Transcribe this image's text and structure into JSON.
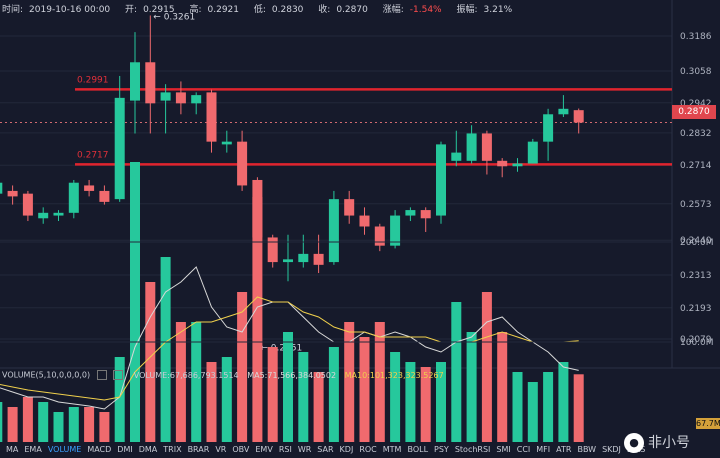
{
  "header": {
    "time_label": "时间:",
    "time": "2019-10-16 00:00",
    "open_label": "开:",
    "open": "0.2915",
    "high_label": "高:",
    "high": "0.2921",
    "low_label": "低:",
    "low": "0.2830",
    "close_label": "收:",
    "close": "0.2870",
    "change_label": "涨幅:",
    "change": "-1.54%",
    "amplitude_label": "振幅:",
    "amplitude": "3.21%"
  },
  "volume_panel": {
    "indicator": "VOLUME(5,10,0,0,0,0)",
    "volume_text": "VOLUME:67,686,793.1514",
    "ma5_text": "MA5:71,566,384.0502",
    "ma10_text": "MA10:101,323,323.5267",
    "last_volume_badge": "67.7M"
  },
  "indicator_tabs": [
    "MA",
    "EMA",
    "VOLUME",
    "MACD",
    "DMI",
    "DMA",
    "TRIX",
    "BRAR",
    "VR",
    "OBV",
    "EMV",
    "RSI",
    "WR",
    "SAR",
    "KDJ",
    "ROC",
    "MTM",
    "BOLL",
    "PSY",
    "StochRSI",
    "SMI",
    "CCI",
    "MFI",
    "ATR",
    "BBW",
    "SKDJ",
    "BIAS"
  ],
  "active_tab": "VOLUME",
  "current_price_badge": "0.2870",
  "watermark": "非小号",
  "colors": {
    "up": "#26c89c",
    "down": "#f06a6e",
    "background": "#161a2b",
    "level_line": "#e0242e",
    "ma5": "#d8d8d8",
    "ma10": "#f0d04c"
  },
  "chart_data": {
    "type": "candlestick",
    "y_ticks": [
      0.3186,
      0.3058,
      0.2942,
      0.2832,
      0.2714,
      0.2573,
      0.244,
      0.2313,
      0.2193,
      0.2079
    ],
    "y_tick_labels": [
      "0.3186",
      "0.3058",
      "0.2942",
      "0.2832",
      "0.2714",
      "0.2573",
      "0.2440",
      "0.2313",
      "0.2193",
      "0.2079"
    ],
    "vol_ticks": [
      200,
      100
    ],
    "vol_tick_labels": [
      "200.0M",
      "100.0M"
    ],
    "level_lines": [
      {
        "value": 0.2991,
        "label": "0.2991"
      },
      {
        "value": 0.2717,
        "label": "0.2717"
      }
    ],
    "current_price": 0.287,
    "annotations": [
      {
        "text": "0.3261",
        "index": 11,
        "value": 0.3261
      },
      {
        "text": "0.2051",
        "index": 18,
        "value": 0.2051
      }
    ],
    "candles": [
      {
        "o": 0.263,
        "h": 0.266,
        "l": 0.257,
        "c": 0.259
      },
      {
        "o": 0.261,
        "h": 0.266,
        "l": 0.258,
        "c": 0.265
      },
      {
        "o": 0.262,
        "h": 0.264,
        "l": 0.257,
        "c": 0.26
      },
      {
        "o": 0.261,
        "h": 0.262,
        "l": 0.251,
        "c": 0.253
      },
      {
        "o": 0.252,
        "h": 0.256,
        "l": 0.25,
        "c": 0.254
      },
      {
        "o": 0.253,
        "h": 0.255,
        "l": 0.251,
        "c": 0.254
      },
      {
        "o": 0.254,
        "h": 0.266,
        "l": 0.252,
        "c": 0.265
      },
      {
        "o": 0.264,
        "h": 0.266,
        "l": 0.26,
        "c": 0.262
      },
      {
        "o": 0.262,
        "h": 0.264,
        "l": 0.257,
        "c": 0.258
      },
      {
        "o": 0.259,
        "h": 0.304,
        "l": 0.258,
        "c": 0.296
      },
      {
        "o": 0.295,
        "h": 0.32,
        "l": 0.283,
        "c": 0.309
      },
      {
        "o": 0.309,
        "h": 0.3261,
        "l": 0.283,
        "c": 0.294
      },
      {
        "o": 0.295,
        "h": 0.301,
        "l": 0.283,
        "c": 0.298
      },
      {
        "o": 0.298,
        "h": 0.302,
        "l": 0.29,
        "c": 0.294
      },
      {
        "o": 0.294,
        "h": 0.298,
        "l": 0.29,
        "c": 0.297
      },
      {
        "o": 0.298,
        "h": 0.299,
        "l": 0.276,
        "c": 0.28
      },
      {
        "o": 0.279,
        "h": 0.284,
        "l": 0.276,
        "c": 0.28
      },
      {
        "o": 0.28,
        "h": 0.284,
        "l": 0.262,
        "c": 0.264
      },
      {
        "o": 0.266,
        "h": 0.267,
        "l": 0.2051,
        "c": 0.245
      },
      {
        "o": 0.245,
        "h": 0.246,
        "l": 0.234,
        "c": 0.236
      },
      {
        "o": 0.236,
        "h": 0.246,
        "l": 0.229,
        "c": 0.237
      },
      {
        "o": 0.236,
        "h": 0.246,
        "l": 0.234,
        "c": 0.239
      },
      {
        "o": 0.239,
        "h": 0.246,
        "l": 0.232,
        "c": 0.235
      },
      {
        "o": 0.236,
        "h": 0.262,
        "l": 0.235,
        "c": 0.259
      },
      {
        "o": 0.259,
        "h": 0.262,
        "l": 0.25,
        "c": 0.253
      },
      {
        "o": 0.253,
        "h": 0.256,
        "l": 0.246,
        "c": 0.249
      },
      {
        "o": 0.249,
        "h": 0.25,
        "l": 0.24,
        "c": 0.242
      },
      {
        "o": 0.242,
        "h": 0.255,
        "l": 0.241,
        "c": 0.253
      },
      {
        "o": 0.253,
        "h": 0.256,
        "l": 0.251,
        "c": 0.255
      },
      {
        "o": 0.255,
        "h": 0.256,
        "l": 0.247,
        "c": 0.252
      },
      {
        "o": 0.253,
        "h": 0.28,
        "l": 0.25,
        "c": 0.279
      },
      {
        "o": 0.273,
        "h": 0.284,
        "l": 0.271,
        "c": 0.276
      },
      {
        "o": 0.273,
        "h": 0.286,
        "l": 0.272,
        "c": 0.283
      },
      {
        "o": 0.283,
        "h": 0.284,
        "l": 0.268,
        "c": 0.273
      },
      {
        "o": 0.273,
        "h": 0.274,
        "l": 0.267,
        "c": 0.271
      },
      {
        "o": 0.271,
        "h": 0.274,
        "l": 0.269,
        "c": 0.272
      },
      {
        "o": 0.272,
        "h": 0.281,
        "l": 0.272,
        "c": 0.28
      },
      {
        "o": 0.28,
        "h": 0.292,
        "l": 0.273,
        "c": 0.29
      },
      {
        "o": 0.29,
        "h": 0.297,
        "l": 0.289,
        "c": 0.292
      },
      {
        "o": 0.2915,
        "h": 0.2921,
        "l": 0.283,
        "c": 0.287
      }
    ],
    "volumes": [
      45,
      40,
      35,
      45,
      40,
      30,
      35,
      35,
      30,
      85,
      280,
      160,
      185,
      120,
      120,
      80,
      85,
      150,
      245,
      95,
      110,
      90,
      70,
      95,
      120,
      105,
      120,
      90,
      80,
      75,
      80,
      140,
      110,
      150,
      110,
      70,
      60,
      70,
      80,
      67.7
    ],
    "ma5": [
      60,
      55,
      50,
      45,
      45,
      40,
      38,
      36,
      33,
      45,
      95,
      125,
      150,
      160,
      175,
      135,
      115,
      110,
      135,
      140,
      140,
      125,
      110,
      100,
      100,
      110,
      105,
      110,
      105,
      95,
      90,
      100,
      105,
      120,
      125,
      110,
      100,
      90,
      75,
      71.6
    ],
    "ma10": [
      60,
      58,
      55,
      52,
      50,
      48,
      46,
      44,
      42,
      45,
      70,
      85,
      100,
      110,
      120,
      120,
      125,
      130,
      145,
      140,
      140,
      130,
      125,
      115,
      110,
      110,
      105,
      105,
      105,
      105,
      100,
      100,
      100,
      105,
      110,
      105,
      100,
      100,
      100,
      101.3
    ]
  }
}
